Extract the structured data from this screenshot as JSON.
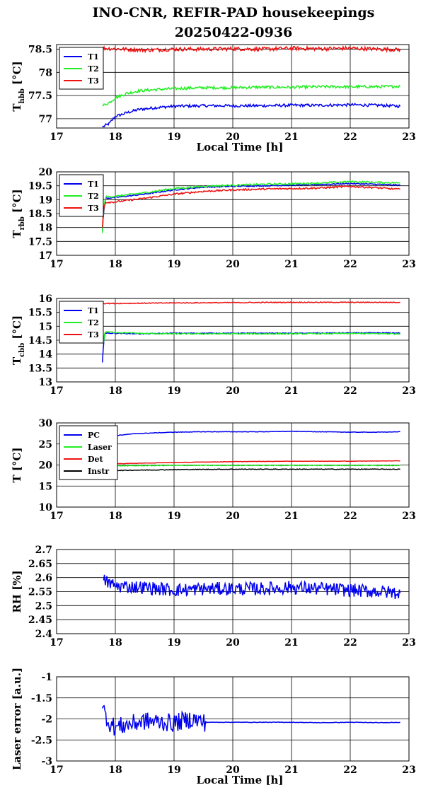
{
  "title": "INO-CNR, REFIR-PAD housekeepings",
  "subtitle": "20250422-0936",
  "colors": {
    "blue": "#0000ee",
    "green": "#22ee22",
    "red": "#ee1111",
    "black": "#000000"
  },
  "chart_data": [
    {
      "type": "line",
      "ylabel_main": "T",
      "ylabel_sub": "hbb",
      "ylabel_unit": " [°C]",
      "xlabel": "Local Time [h]",
      "xlim": [
        17,
        23
      ],
      "xticks": [
        "17",
        "18",
        "19",
        "20",
        "21",
        "22",
        "23"
      ],
      "ylim": [
        76.8,
        78.6
      ],
      "yticks": [
        "77",
        "77.5",
        "78",
        "78.5"
      ],
      "ytick_values": [
        77,
        77.5,
        78,
        78.5
      ],
      "grid": true,
      "legend": "top-left",
      "series": [
        {
          "name": "T1",
          "color": "#0000ee",
          "x": [
            17.78,
            17.9,
            18.0,
            18.2,
            18.4,
            18.7,
            19.0,
            19.5,
            20.0,
            20.5,
            21.0,
            21.5,
            22.0,
            22.5,
            22.85
          ],
          "y": [
            76.82,
            76.9,
            77.05,
            77.13,
            77.2,
            77.24,
            77.27,
            77.28,
            77.28,
            77.28,
            77.29,
            77.29,
            77.3,
            77.29,
            77.27
          ],
          "noise": 0.03
        },
        {
          "name": "T2",
          "color": "#22ee22",
          "x": [
            17.78,
            17.9,
            18.0,
            18.2,
            18.4,
            18.7,
            19.0,
            19.5,
            20.0,
            20.5,
            21.0,
            21.5,
            22.0,
            22.5,
            22.85
          ],
          "y": [
            77.28,
            77.35,
            77.45,
            77.55,
            77.6,
            77.63,
            77.65,
            77.67,
            77.67,
            77.68,
            77.68,
            77.69,
            77.69,
            77.69,
            77.7
          ],
          "noise": 0.03
        },
        {
          "name": "T3",
          "color": "#ee1111",
          "x": [
            17.78,
            18.5,
            19.0,
            19.5,
            20.0,
            20.5,
            21.0,
            21.5,
            22.0,
            22.5,
            22.85
          ],
          "y": [
            78.52,
            78.48,
            78.5,
            78.5,
            78.51,
            78.5,
            78.52,
            78.51,
            78.52,
            78.5,
            78.49
          ],
          "noise": 0.04
        }
      ]
    },
    {
      "type": "line",
      "ylabel_main": "T",
      "ylabel_sub": "rbb",
      "ylabel_unit": " [°C]",
      "xlabel": "",
      "xlim": [
        17,
        23
      ],
      "xticks": [
        "17",
        "18",
        "19",
        "20",
        "21",
        "22",
        "23"
      ],
      "ylim": [
        17,
        20
      ],
      "yticks": [
        "17",
        "17.5",
        "18",
        "18.5",
        "19",
        "19.5",
        "20"
      ],
      "ytick_values": [
        17,
        17.5,
        18,
        18.5,
        19,
        19.5,
        20
      ],
      "grid": true,
      "legend": "top-left",
      "series": [
        {
          "name": "T1",
          "color": "#0000ee",
          "x": [
            17.78,
            17.8,
            17.83,
            18.0,
            18.5,
            19.0,
            19.5,
            20.0,
            20.5,
            21.0,
            21.5,
            22.0,
            22.5,
            22.85
          ],
          "y": [
            17.9,
            18.5,
            19.05,
            19.08,
            19.2,
            19.35,
            19.45,
            19.48,
            19.5,
            19.52,
            19.55,
            19.58,
            19.55,
            19.52
          ],
          "noise": 0.02
        },
        {
          "name": "T2",
          "color": "#22ee22",
          "x": [
            17.78,
            17.8,
            17.83,
            18.0,
            18.5,
            19.0,
            19.5,
            20.0,
            20.5,
            21.0,
            21.5,
            22.0,
            22.5,
            22.85
          ],
          "y": [
            17.8,
            18.6,
            19.1,
            19.12,
            19.25,
            19.4,
            19.48,
            19.52,
            19.55,
            19.57,
            19.6,
            19.65,
            19.62,
            19.6
          ],
          "noise": 0.03
        },
        {
          "name": "T3",
          "color": "#ee1111",
          "x": [
            17.78,
            17.8,
            17.83,
            18.0,
            18.5,
            19.0,
            19.5,
            20.0,
            20.5,
            21.0,
            21.5,
            22.0,
            22.5,
            22.85
          ],
          "y": [
            18.0,
            18.7,
            18.9,
            18.92,
            19.05,
            19.2,
            19.3,
            19.35,
            19.38,
            19.4,
            19.42,
            19.48,
            19.42,
            19.37
          ],
          "noise": 0.03
        }
      ]
    },
    {
      "type": "line",
      "ylabel_main": "T",
      "ylabel_sub": "cbb",
      "ylabel_unit": " [°C]",
      "xlabel": "",
      "xlim": [
        17,
        23
      ],
      "xticks": [
        "17",
        "18",
        "19",
        "20",
        "21",
        "22",
        "23"
      ],
      "ylim": [
        13,
        16
      ],
      "yticks": [
        "13",
        "13.5",
        "14",
        "14.5",
        "15",
        "15.5",
        "16"
      ],
      "ytick_values": [
        13,
        13.5,
        14,
        14.5,
        15,
        15.5,
        16
      ],
      "grid": true,
      "legend": "top-left",
      "series": [
        {
          "name": "T1",
          "color": "#0000ee",
          "x": [
            17.78,
            17.8,
            17.82,
            18.0,
            18.5,
            19.0,
            20.0,
            21.0,
            22.0,
            22.85
          ],
          "y": [
            13.7,
            14.4,
            14.75,
            14.75,
            14.73,
            14.75,
            14.75,
            14.75,
            14.76,
            14.76
          ],
          "noise": 0.015
        },
        {
          "name": "T2",
          "color": "#22ee22",
          "x": [
            17.8,
            17.82,
            18.0,
            18.5,
            19.0,
            20.0,
            21.0,
            22.0,
            22.85
          ],
          "y": [
            14.4,
            14.8,
            14.78,
            14.74,
            14.73,
            14.73,
            14.73,
            14.74,
            14.73
          ],
          "noise": 0.02
        },
        {
          "name": "T3",
          "color": "#ee1111",
          "x": [
            17.8,
            18.0,
            18.5,
            19.0,
            20.0,
            21.0,
            22.0,
            22.85
          ],
          "y": [
            15.82,
            15.82,
            15.83,
            15.84,
            15.85,
            15.86,
            15.86,
            15.86
          ],
          "noise": 0.015
        }
      ]
    },
    {
      "type": "line",
      "ylabel_main": "T [°C]",
      "ylabel_sub": "",
      "ylabel_unit": "",
      "xlabel": "",
      "xlim": [
        17,
        23
      ],
      "xticks": [
        "17",
        "18",
        "19",
        "20",
        "21",
        "22",
        "23"
      ],
      "ylim": [
        10,
        30
      ],
      "yticks": [
        "10",
        "15",
        "20",
        "25",
        "30"
      ],
      "ytick_values": [
        10,
        15,
        20,
        25,
        30
      ],
      "grid": true,
      "legend": "top-left",
      "series": [
        {
          "name": "PC",
          "color": "#0000ee",
          "x": [
            17.8,
            18.0,
            18.3,
            18.6,
            19.0,
            19.5,
            20.0,
            20.5,
            21.0,
            21.5,
            22.0,
            22.5,
            22.85
          ],
          "y": [
            26.3,
            27.0,
            27.4,
            27.6,
            27.8,
            27.9,
            27.9,
            27.9,
            28.0,
            27.9,
            27.8,
            27.8,
            27.9
          ],
          "noise": 0.05
        },
        {
          "name": "Laser",
          "color": "#22ee22",
          "x": [
            17.8,
            18.0,
            19.0,
            20.0,
            21.0,
            22.0,
            22.85
          ],
          "y": [
            19.8,
            19.8,
            19.9,
            19.9,
            19.9,
            19.9,
            19.9
          ],
          "noise": 0.08
        },
        {
          "name": "Det",
          "color": "#ee1111",
          "x": [
            17.8,
            18.0,
            19.0,
            20.0,
            21.0,
            22.0,
            22.85
          ],
          "y": [
            20.2,
            20.3,
            20.6,
            20.8,
            20.9,
            20.9,
            21.0
          ],
          "noise": 0.04
        },
        {
          "name": "Instr",
          "color": "#000000",
          "x": [
            17.8,
            18.0,
            19.0,
            20.0,
            21.0,
            22.0,
            22.85
          ],
          "y": [
            18.6,
            18.7,
            18.9,
            19.0,
            19.0,
            19.0,
            19.0
          ],
          "noise": 0.08
        }
      ]
    },
    {
      "type": "line",
      "ylabel_main": "RH [%]",
      "ylabel_sub": "",
      "ylabel_unit": "",
      "xlabel": "",
      "xlim": [
        17,
        23
      ],
      "xticks": [
        "17",
        "18",
        "19",
        "20",
        "21",
        "22",
        "23"
      ],
      "ylim": [
        2.4,
        2.7
      ],
      "yticks": [
        "2.4",
        "2.45",
        "2.5",
        "2.55",
        "2.6",
        "2.65",
        "2.7"
      ],
      "ytick_values": [
        2.4,
        2.45,
        2.5,
        2.55,
        2.6,
        2.65,
        2.7
      ],
      "grid": true,
      "legend": "none",
      "series": [
        {
          "name": "",
          "color": "#0000ee",
          "x": [
            17.8,
            18.0,
            18.5,
            19.0,
            19.5,
            20.0,
            20.5,
            21.0,
            21.5,
            22.0,
            22.5,
            22.85
          ],
          "y": [
            2.59,
            2.57,
            2.565,
            2.555,
            2.56,
            2.56,
            2.56,
            2.565,
            2.56,
            2.555,
            2.55,
            2.545
          ],
          "noise": 0.024
        }
      ]
    },
    {
      "type": "line",
      "ylabel_main": "Laser error [a.u.]",
      "ylabel_sub": "",
      "ylabel_unit": "",
      "xlabel": "Local Time [h]",
      "xlim": [
        17,
        23
      ],
      "xticks": [
        "17",
        "18",
        "19",
        "20",
        "21",
        "22",
        "23"
      ],
      "ylim": [
        -3,
        -1
      ],
      "yticks": [
        "-3",
        "-2.5",
        "-2",
        "-1.5",
        "-1"
      ],
      "ytick_values": [
        -3,
        -2.5,
        -2,
        -1.5,
        -1
      ],
      "grid": true,
      "legend": "none",
      "series": [
        {
          "name": "",
          "color": "#0000ee",
          "x": [
            17.78,
            17.9,
            18.0,
            18.5,
            19.0,
            19.3,
            19.55
          ],
          "y": [
            -1.75,
            -2.1,
            -2.2,
            -2.05,
            -2.1,
            -2.0,
            -2.1
          ],
          "noise": 0.22
        },
        {
          "name": "",
          "color": "#0000ee",
          "x": [
            19.55,
            20.0,
            20.5,
            21.0,
            21.5,
            22.0,
            22.5,
            22.85
          ],
          "y": [
            -2.08,
            -2.08,
            -2.08,
            -2.08,
            -2.09,
            -2.08,
            -2.09,
            -2.08
          ],
          "noise": 0.006
        }
      ]
    }
  ]
}
